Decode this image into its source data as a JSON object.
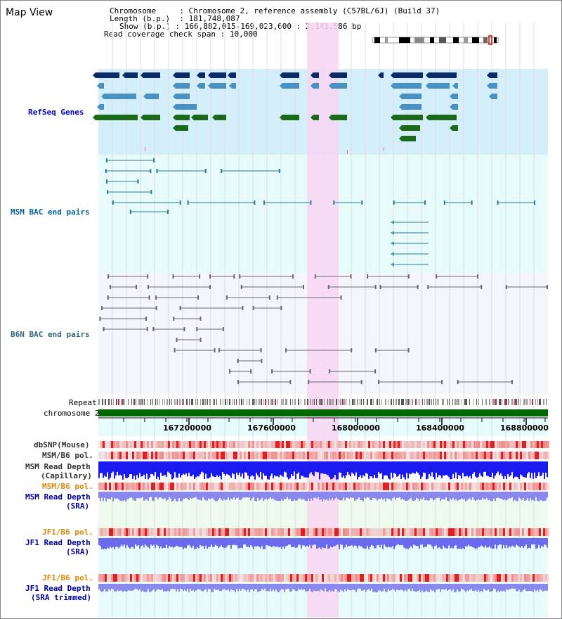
{
  "window": {
    "title": "Map View"
  },
  "info": {
    "chromosome_key": "Chromosome",
    "chromosome_value": "Chromosome 2, reference assembly (C57BL/6J) (Build 37)",
    "length_key": "Length (b.p.)",
    "length_value": "181,748,087",
    "show_key": "Show (b.p.)",
    "show_value": "166,882,015-169,023,600 : 2,141,586 bp",
    "coverage_key": "Read coverage check span",
    "coverage_value": "10,000"
  },
  "tracks": {
    "refseq": "RefSeq Genes",
    "msm_bac": "MSM BAC end pairs",
    "b6n_bac": "B6N BAC end pairs",
    "repeat": "Repeat",
    "chromosome": "chromosome 2",
    "dbsnp": "dbSNP(Mouse)",
    "msm_b6_pol": "MSM/B6 pol.",
    "msm_read_depth_cap_1": "MSM Read Depth",
    "msm_read_depth_cap_2": "(Capillary)",
    "msm_b6_pol_sra": "MSM/B6 pol.",
    "msm_read_depth_sra_1": "MSM Read Depth",
    "msm_read_depth_sra_2": "(SRA)",
    "jf1_b6_pol_1": "JF1/B6 pol.",
    "jf1_read_depth_sra_1": "JF1 Read Depth",
    "jf1_read_depth_sra_2": "(SRA)",
    "jf1_b6_pol_2": "JF1/B6 pol.",
    "jf1_read_depth_trim_1": "JF1 Read Depth",
    "jf1_read_depth_trim_2": "(SRA trimmed)"
  },
  "axis": {
    "tick_labels": [
      "167200000",
      "167600000",
      "168000000",
      "168400000",
      "168800000"
    ]
  },
  "colors": {
    "refseq_bg": "#d4eefa",
    "bac_bg": "#e8fbfb",
    "b6n_bg": "#f4f6fb",
    "highlight": "#f8d6f2",
    "chromosome": "#006600",
    "gene_dark": "#0a2a6a",
    "gene_light": "#4a90c0",
    "gene_green": "#1a6a1a",
    "msm_label": "#006699",
    "b6n_label": "#006699",
    "refseq_label": "#0000cc",
    "orange_label": "#dd8800",
    "blue_label": "#000099"
  }
}
